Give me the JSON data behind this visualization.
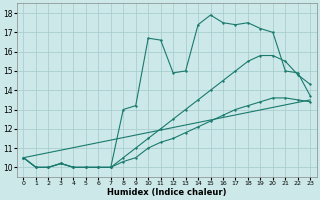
{
  "xlabel": "Humidex (Indice chaleur)",
  "bg_color": "#cce8e8",
  "grid_color": "#aacece",
  "line_color": "#1a7a6e",
  "xlim": [
    -0.5,
    23.5
  ],
  "ylim": [
    9.5,
    18.5
  ],
  "xticks": [
    0,
    1,
    2,
    3,
    4,
    5,
    6,
    7,
    8,
    9,
    10,
    11,
    12,
    13,
    14,
    15,
    16,
    17,
    18,
    19,
    20,
    21,
    22,
    23
  ],
  "yticks": [
    10,
    11,
    12,
    13,
    14,
    15,
    16,
    17,
    18
  ],
  "line_straight": {
    "x": [
      0,
      23
    ],
    "y": [
      10.5,
      13.5
    ]
  },
  "line_mid": {
    "x": [
      0,
      1,
      2,
      3,
      4,
      5,
      6,
      7,
      8,
      9,
      10,
      11,
      12,
      13,
      14,
      15,
      16,
      17,
      18,
      19,
      20,
      21,
      22,
      23
    ],
    "y": [
      10.5,
      10.0,
      10.0,
      10.2,
      10.0,
      10.0,
      10.0,
      10.0,
      10.5,
      11.0,
      11.5,
      12.0,
      12.5,
      13.0,
      13.5,
      14.0,
      14.5,
      15.0,
      15.5,
      15.8,
      15.8,
      15.5,
      14.8,
      14.3
    ]
  },
  "line_upper": {
    "x": [
      0,
      1,
      2,
      3,
      4,
      5,
      6,
      7,
      8,
      9,
      10,
      11,
      12,
      13,
      14,
      15,
      16,
      17,
      18,
      19,
      20,
      21,
      22,
      23
    ],
    "y": [
      10.5,
      10.0,
      10.0,
      10.2,
      10.0,
      10.0,
      10.0,
      10.0,
      13.0,
      13.2,
      16.7,
      16.6,
      14.9,
      15.0,
      17.4,
      17.9,
      17.5,
      17.4,
      17.5,
      17.2,
      17.0,
      15.0,
      14.9,
      13.7
    ]
  },
  "line_lower": {
    "x": [
      0,
      1,
      2,
      3,
      4,
      5,
      6,
      7,
      8,
      9,
      10,
      11,
      12,
      13,
      14,
      15,
      16,
      17,
      18,
      19,
      20,
      21,
      22,
      23
    ],
    "y": [
      10.5,
      10.0,
      10.0,
      10.2,
      10.0,
      10.0,
      10.0,
      10.0,
      10.3,
      10.5,
      11.0,
      11.3,
      11.5,
      11.8,
      12.1,
      12.4,
      12.7,
      13.0,
      13.2,
      13.4,
      13.6,
      13.6,
      13.5,
      13.4
    ]
  }
}
